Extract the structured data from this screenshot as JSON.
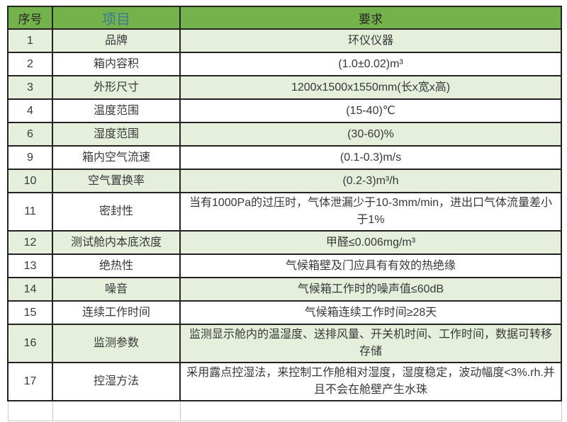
{
  "page": {
    "background": "#ffffff"
  },
  "colors": {
    "header_bg": "#74b24b",
    "header_text": "#262626",
    "header_item_text": "#3d7a98",
    "row_shaded_bg": "#e5efdc",
    "row_white_bg": "#ffffff",
    "border_dark": "#222222",
    "border_light": "#c9c9c9",
    "body_text": "#383838"
  },
  "table": {
    "headers": [
      {
        "label": "序号"
      },
      {
        "label": "项目"
      },
      {
        "label": "要求"
      }
    ],
    "rows": [
      {
        "no": "1",
        "item": "品牌",
        "req": "环仪仪器",
        "shaded": true,
        "tall": false,
        "empty": false
      },
      {
        "no": "2",
        "item": "箱内容积",
        "req": "(1.0±0.02)m³",
        "shaded": false,
        "tall": false,
        "empty": false
      },
      {
        "no": "3",
        "item": "外形尺寸",
        "req": "1200x1500x1550mm(长x宽x高)",
        "shaded": true,
        "tall": false,
        "empty": false
      },
      {
        "no": "4",
        "item": "温度范围",
        "req": "(15-40)℃",
        "shaded": false,
        "tall": false,
        "empty": false
      },
      {
        "no": "6",
        "item": "湿度范围",
        "req": "(30-60)%",
        "shaded": true,
        "tall": false,
        "empty": false
      },
      {
        "no": "9",
        "item": "箱内空气流速",
        "req": "(0.1-0.3)m/s",
        "shaded": false,
        "tall": false,
        "empty": false
      },
      {
        "no": "10",
        "item": "空气置换率",
        "req": "(0.2-3)m³/h",
        "shaded": true,
        "tall": false,
        "empty": false
      },
      {
        "no": "11",
        "item": "密封性",
        "req": "当有1000Pa的过压时，气体泄漏少于10-3mm/min，进出口气体流量差小于1%",
        "shaded": false,
        "tall": true,
        "empty": false
      },
      {
        "no": "12",
        "item": "测试舱内本底浓度",
        "req": "甲醛≤0.006mg/m³",
        "shaded": true,
        "tall": false,
        "empty": false
      },
      {
        "no": "13",
        "item": "绝热性",
        "req": "气候箱壁及门应具有有效的热绝缘",
        "shaded": false,
        "tall": false,
        "empty": false
      },
      {
        "no": "14",
        "item": "噪音",
        "req": "气候箱工作时的噪声值≤60dB",
        "shaded": true,
        "tall": false,
        "empty": false
      },
      {
        "no": "15",
        "item": "连续工作时间",
        "req": "气候箱连续工作时间≥28天",
        "shaded": false,
        "tall": false,
        "empty": false
      },
      {
        "no": "16",
        "item": "监测参数",
        "req": "监测显示舱内的温湿度、送排风量、开关机时间、工作时间，数据可转移存储",
        "shaded": true,
        "tall": true,
        "empty": false
      },
      {
        "no": "17",
        "item": "控湿方法",
        "req": "采用露点控湿法，来控制工作舱相对湿度，湿度稳定，波动幅度<3%.rh.并且不会在舱壁产生水珠",
        "shaded": false,
        "tall": true,
        "empty": false
      },
      {
        "no": "",
        "item": "",
        "req": "",
        "shaded": false,
        "tall": false,
        "empty": true
      }
    ]
  }
}
